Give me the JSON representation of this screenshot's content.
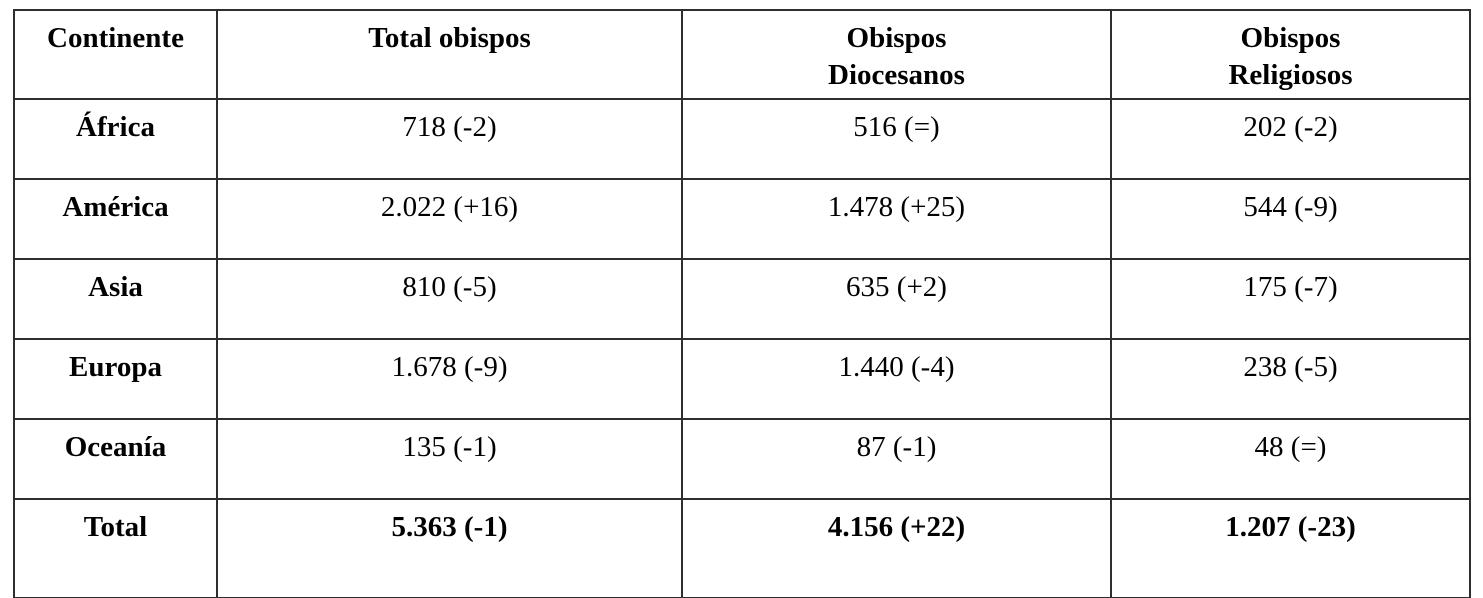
{
  "colors": {
    "background": "#ffffff",
    "border": "#2e2e2e",
    "text": "#000000"
  },
  "table": {
    "columns": {
      "continent": "Continente",
      "total": "Total obispos",
      "diocesan": "Obispos\nDiocesanos",
      "religious": "Obispos\nReligiosos"
    },
    "rows": [
      {
        "continent": "África",
        "total": "718 (-2)",
        "diocesan": "516 (=)",
        "religious": "202 (-2)"
      },
      {
        "continent": "América",
        "total": "2.022 (+16)",
        "diocesan": "1.478 (+25)",
        "religious": "544 (-9)"
      },
      {
        "continent": "Asia",
        "total": "810 (-5)",
        "diocesan": "635 (+2)",
        "religious": "175 (-7)"
      },
      {
        "continent": "Europa",
        "total": "1.678 (-9)",
        "diocesan": "1.440 (-4)",
        "religious": "238 (-5)"
      },
      {
        "continent": "Oceanía",
        "total": "135 (-1)",
        "diocesan": "87 (-1)",
        "religious": "48 (=)"
      }
    ],
    "total_row": {
      "continent": "Total",
      "total": "5.363 (-1)",
      "diocesan": "4.156 (+22)",
      "religious": "1.207 (-23)"
    }
  }
}
